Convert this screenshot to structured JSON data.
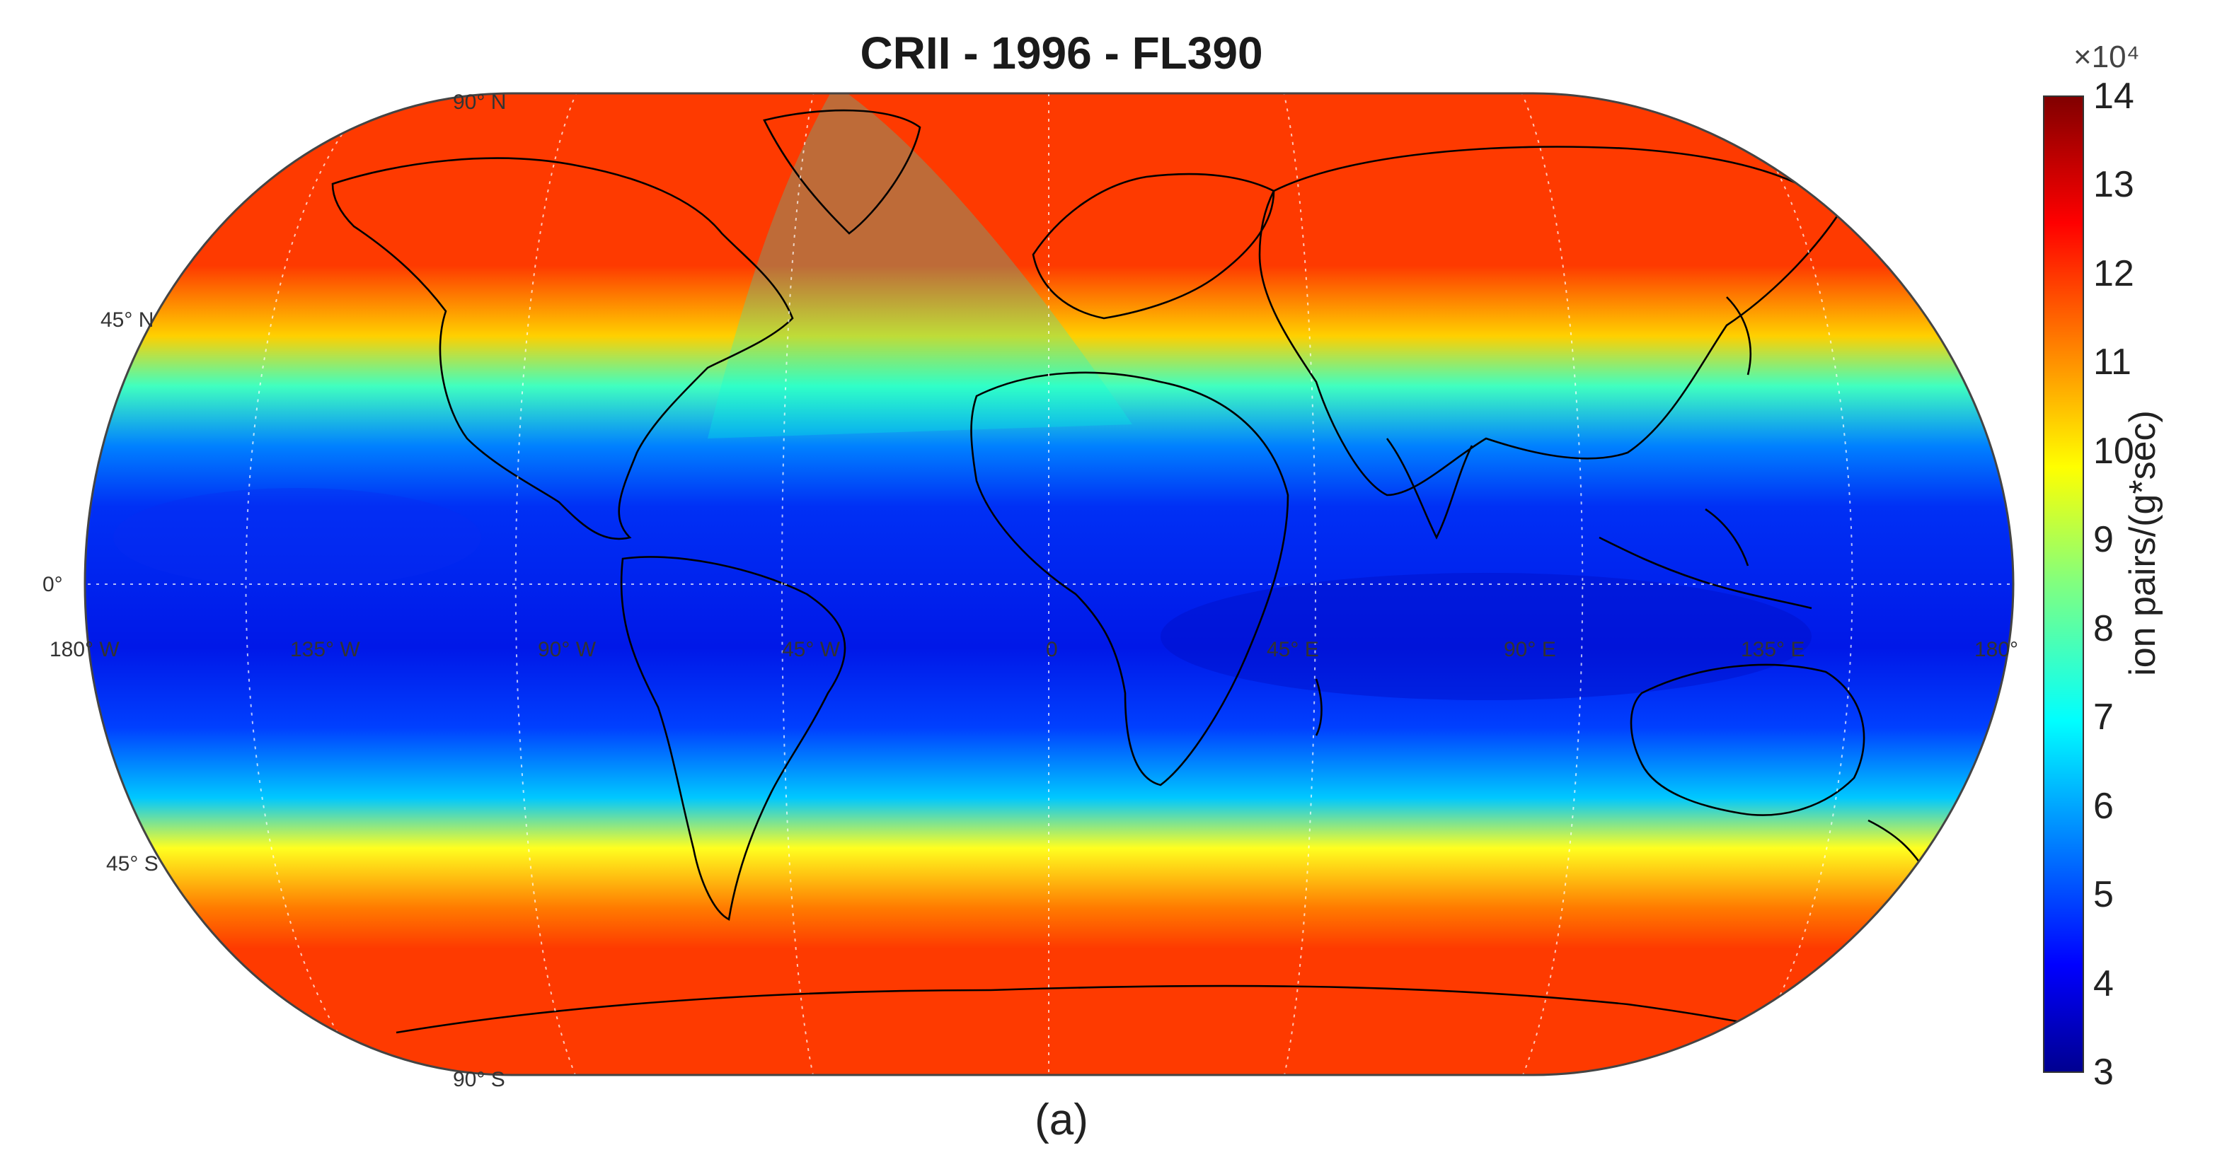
{
  "title": "CRII - 1996 - FL390",
  "caption": "(a)",
  "map": {
    "projection": "Robinson",
    "lat_labels": [
      "90° N",
      "45° N",
      "0°",
      "45° S",
      "90° S"
    ],
    "lon_labels": [
      "180° W",
      "135° W",
      "90° W",
      "45° W",
      "0",
      "45° E",
      "90° E",
      "135° E",
      "180°"
    ]
  },
  "colorbar": {
    "multiplier": "×10⁴",
    "label": "ion pairs/(g*sec)",
    "min": 3,
    "max": 14,
    "ticks": [
      "14",
      "13",
      "12",
      "11",
      "10",
      "9",
      "8",
      "7",
      "6",
      "5",
      "4",
      "3"
    ],
    "colormap": "jet"
  },
  "field_description": {
    "high_value_regions": "polar",
    "low_value_region": "equatorial",
    "max_value_approx": 12,
    "min_value_approx": 3.5
  },
  "colors": {
    "jet_high": "#fe3a00",
    "jet_low": "#0018ea",
    "coastline": "#000000"
  }
}
